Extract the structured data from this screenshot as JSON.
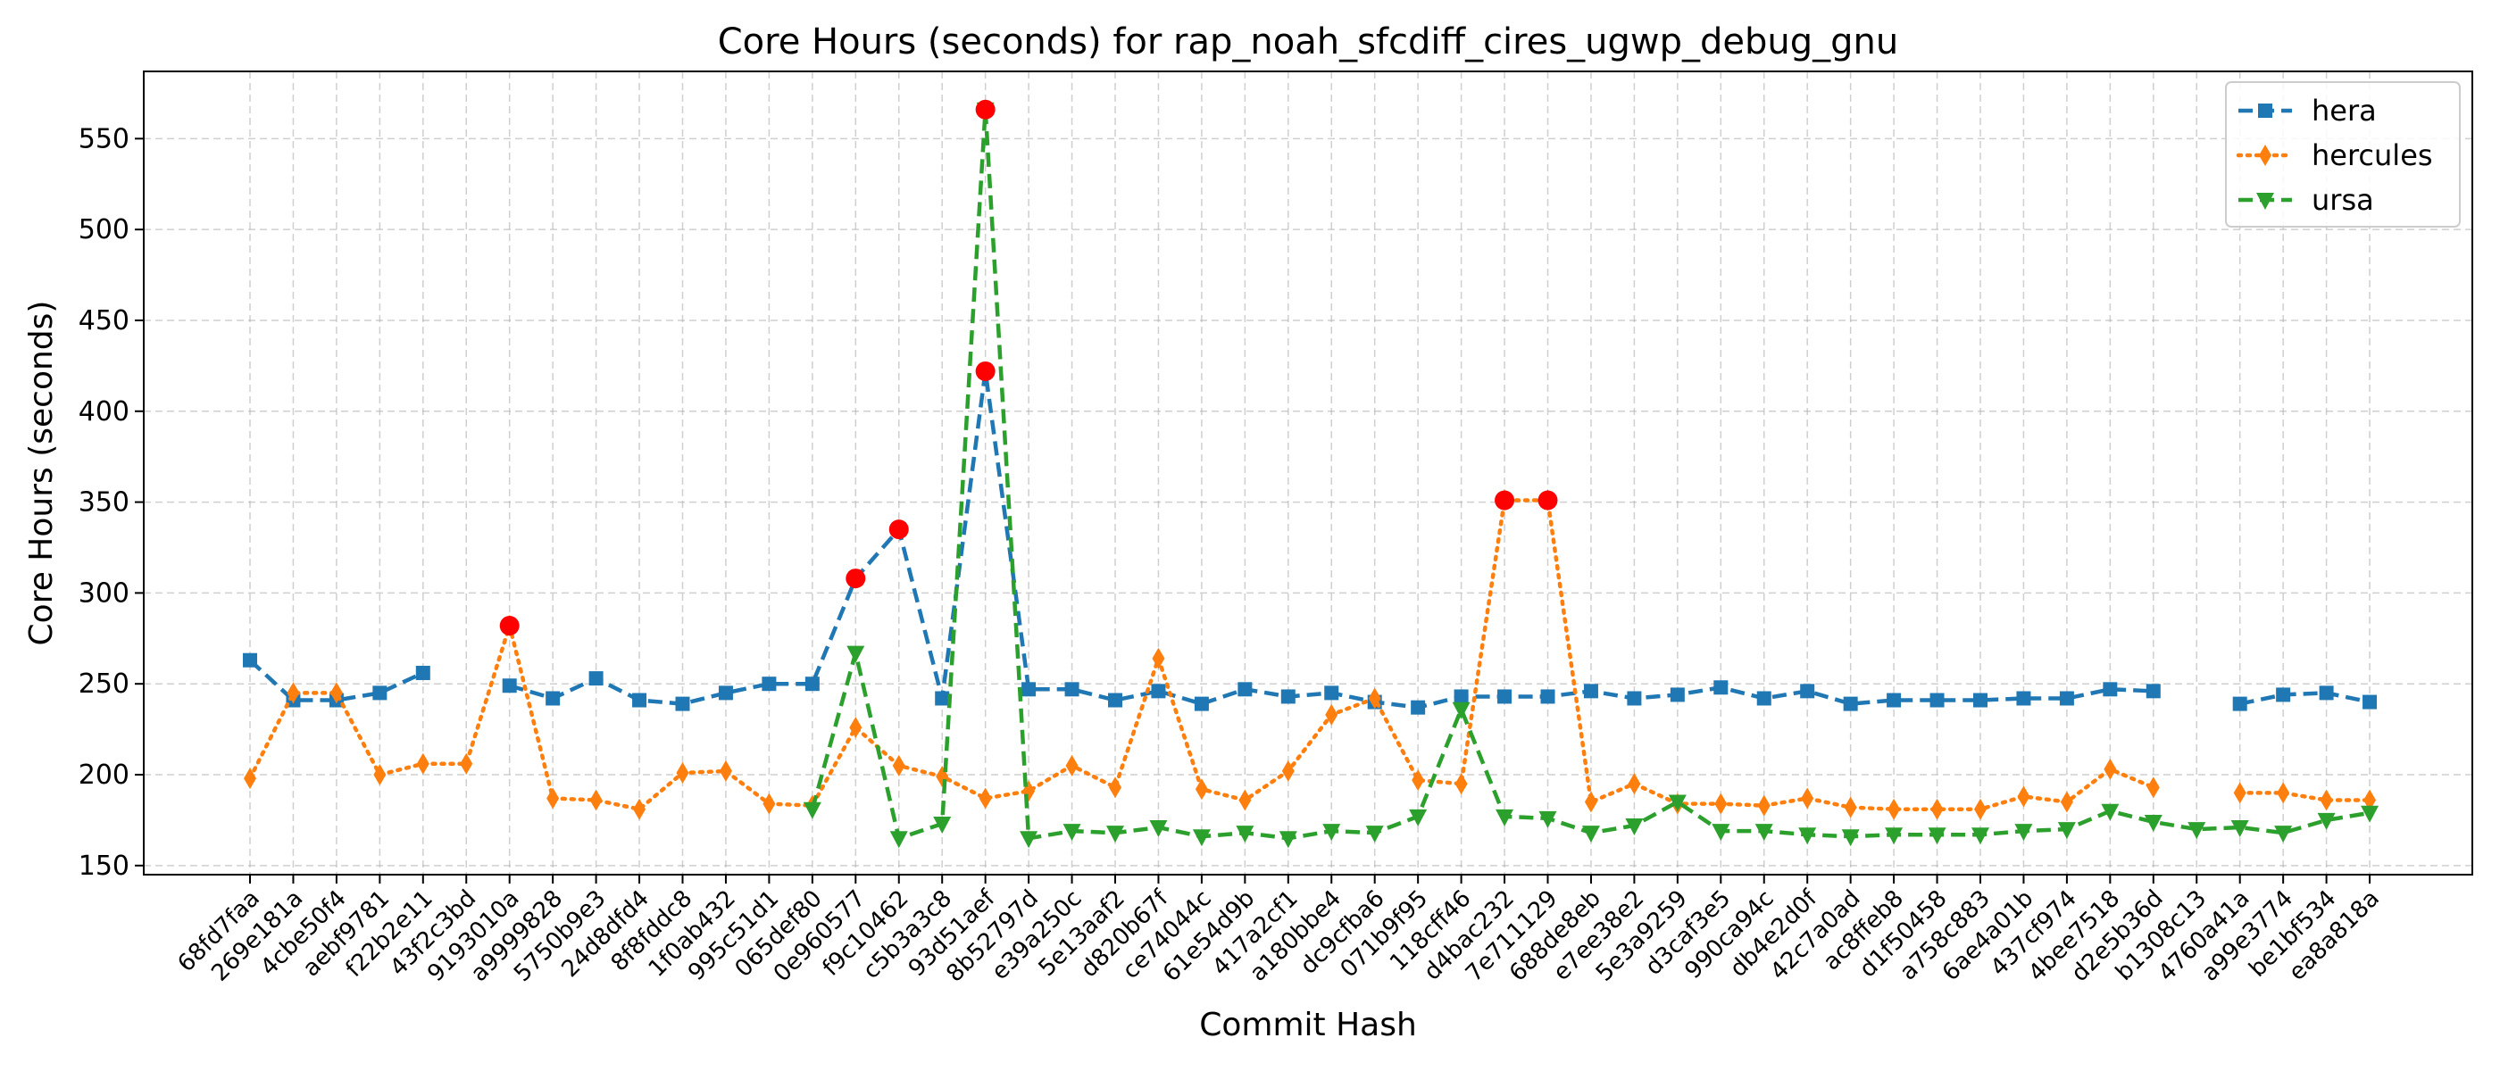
{
  "chart_data": {
    "type": "line",
    "title": "Core Hours (seconds) for rap_noah_sfcdiff_cires_ugwp_debug_gnu",
    "xlabel": "Commit Hash",
    "ylabel": "Core Hours (seconds)",
    "ylim": [
      145,
      587
    ],
    "yticks": [
      150,
      200,
      250,
      300,
      350,
      400,
      450,
      500,
      550
    ],
    "grid": true,
    "legend_position": "top-right",
    "categories": [
      "68fd7faa",
      "269e181a",
      "4cbe50f4",
      "aebf9781",
      "f22b2e11",
      "43f2c3bd",
      "9193010a",
      "a9999828",
      "5750b9e3",
      "24d8dfd4",
      "8f8fddc8",
      "1f0ab432",
      "995c51d1",
      "065def80",
      "0e960577",
      "f9c10462",
      "c5b3a3c8",
      "93d51aef",
      "8b52797d",
      "e39a250c",
      "5e13aaf2",
      "d820b67f",
      "ce74044c",
      "61e54d9b",
      "417a2cf1",
      "a180bbe4",
      "dc9cfba6",
      "071b9f95",
      "118cff46",
      "d4bac232",
      "7e711129",
      "688de8eb",
      "e7ee38e2",
      "5e3a9259",
      "d3caf3e5",
      "990ca94c",
      "db4e2d0f",
      "42c7a0ad",
      "ac8ffeb8",
      "d1f50458",
      "a758c883",
      "6ae4a01b",
      "437cf974",
      "4bee7518",
      "d2e5b36d",
      "b1308c13",
      "4760a41a",
      "a99e3774",
      "be1bf534",
      "ea8a818a"
    ],
    "series": [
      {
        "name": "hera",
        "color": "#1f77b4",
        "marker": "square",
        "line_style": "dashed",
        "values": [
          263,
          241,
          241,
          245,
          256,
          null,
          249,
          242,
          253,
          241,
          239,
          245,
          250,
          250,
          308,
          335,
          242,
          422,
          247,
          247,
          241,
          246,
          239,
          247,
          243,
          245,
          240,
          237,
          243,
          243,
          243,
          246,
          242,
          244,
          248,
          242,
          246,
          239,
          241,
          241,
          241,
          242,
          242,
          247,
          246,
          null,
          239,
          244,
          245,
          240
        ]
      },
      {
        "name": "hercules",
        "color": "#ff7f0e",
        "marker": "thin_diamond",
        "line_style": "dotted",
        "values": [
          198,
          245,
          245,
          200,
          206,
          206,
          282,
          187,
          186,
          181,
          201,
          202,
          184,
          183,
          226,
          205,
          199,
          187,
          191,
          205,
          193,
          264,
          192,
          186,
          202,
          233,
          242,
          197,
          195,
          351,
          351,
          185,
          195,
          184,
          184,
          183,
          187,
          182,
          181,
          181,
          181,
          188,
          185,
          203,
          193,
          null,
          190,
          190,
          186,
          186
        ]
      },
      {
        "name": "ursa",
        "color": "#2ca02c",
        "marker": "triangle_down",
        "line_style": "dashed",
        "values": [
          null,
          null,
          null,
          null,
          null,
          null,
          null,
          null,
          null,
          null,
          null,
          null,
          null,
          181,
          267,
          165,
          173,
          566,
          165,
          169,
          168,
          171,
          166,
          168,
          165,
          169,
          168,
          177,
          236,
          177,
          176,
          168,
          172,
          185,
          169,
          169,
          167,
          166,
          167,
          167,
          167,
          169,
          170,
          180,
          174,
          170,
          171,
          168,
          175,
          179
        ]
      }
    ],
    "highlight_color": "#ff0000",
    "highlights": [
      {
        "series": "hercules",
        "index": 6
      },
      {
        "series": "hera",
        "index": 14
      },
      {
        "series": "hera",
        "index": 15
      },
      {
        "series": "hera",
        "index": 17
      },
      {
        "series": "ursa",
        "index": 17
      },
      {
        "series": "hercules",
        "index": 29
      },
      {
        "series": "hercules",
        "index": 30
      }
    ]
  }
}
